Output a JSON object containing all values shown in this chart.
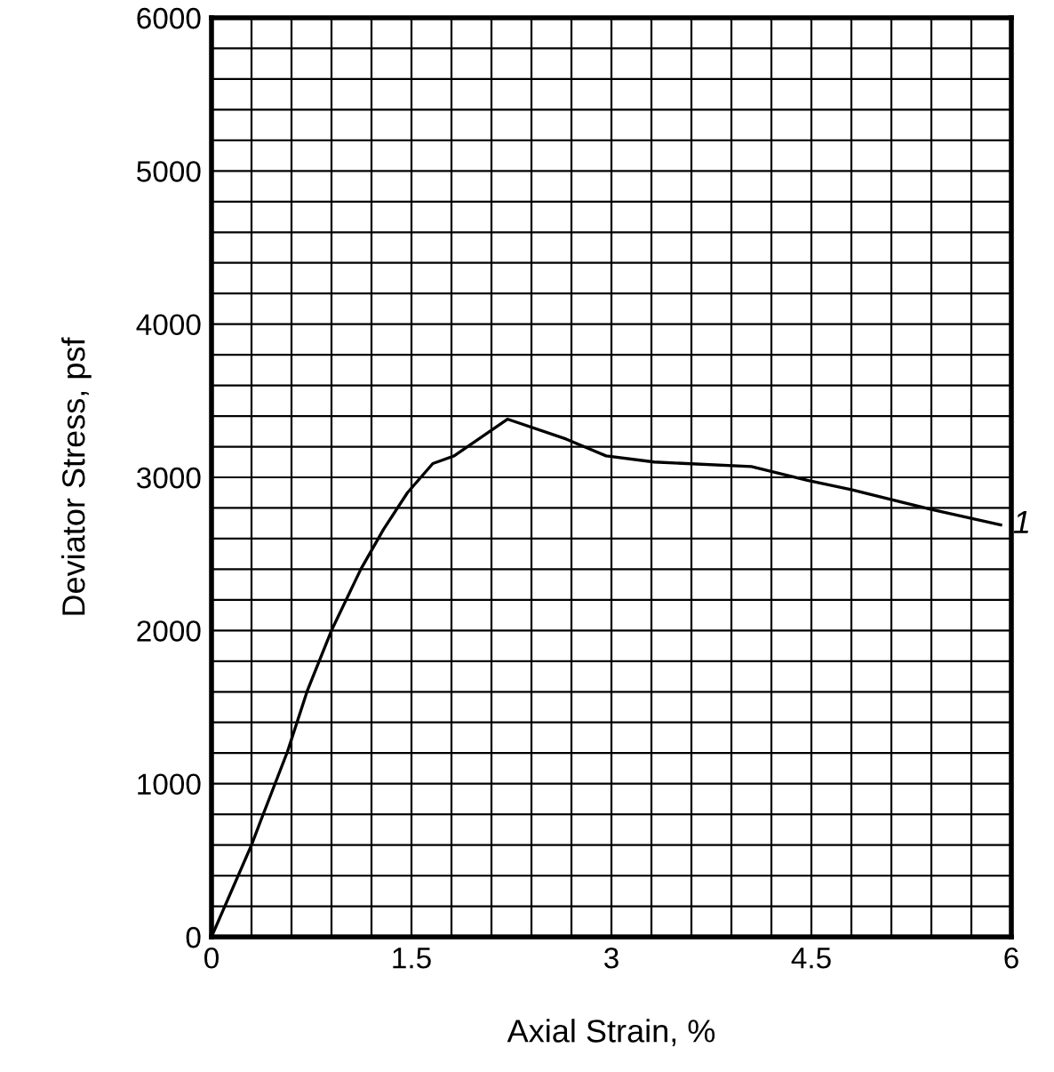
{
  "chart_data": {
    "type": "line",
    "xlabel": "Axial Strain, %",
    "ylabel": "Deviator Stress, psf",
    "x": [
      0,
      0.3,
      0.37,
      0.57,
      0.72,
      0.9,
      1.12,
      1.29,
      1.47,
      1.66,
      1.82,
      2.22,
      2.66,
      2.96,
      3.32,
      4.05,
      4.47,
      4.8,
      5.4,
      5.92
    ],
    "series": [
      {
        "name": "1",
        "color": "#000000",
        "values": [
          0,
          600,
          760,
          1210,
          1610,
          2000,
          2400,
          2660,
          2900,
          3090,
          3140,
          3380,
          3250,
          3140,
          3100,
          3070,
          2980,
          2920,
          2790,
          2690
        ]
      }
    ],
    "xlim": [
      0,
      6
    ],
    "ylim": [
      0,
      6000
    ],
    "xticks": [
      0,
      {
        "value": 0.3,
        "label": null
      },
      {
        "value": 0.6,
        "label": null
      },
      {
        "value": 0.9,
        "label": null
      },
      {
        "value": 1.2,
        "label": null
      },
      1.5,
      {
        "value": 1.8,
        "label": null
      },
      {
        "value": 2.1,
        "label": null
      },
      {
        "value": 2.4,
        "label": null
      },
      {
        "value": 2.7,
        "label": null
      },
      3,
      {
        "value": 3.3,
        "label": null
      },
      {
        "value": 3.6,
        "label": null
      },
      {
        "value": 3.9,
        "label": null
      },
      {
        "value": 4.2,
        "label": null
      },
      4.5,
      {
        "value": 4.8,
        "label": null
      },
      {
        "value": 5.1,
        "label": null
      },
      {
        "value": 5.4,
        "label": null
      },
      {
        "value": 5.7,
        "label": null
      },
      6
    ],
    "yticks": [
      0,
      {
        "value": 200,
        "label": null
      },
      {
        "value": 400,
        "label": null
      },
      {
        "value": 600,
        "label": null
      },
      {
        "value": 800,
        "label": null
      },
      1000,
      {
        "value": 1200,
        "label": null
      },
      {
        "value": 1400,
        "label": null
      },
      {
        "value": 1600,
        "label": null
      },
      {
        "value": 1800,
        "label": null
      },
      2000,
      {
        "value": 2200,
        "label": null
      },
      {
        "value": 2400,
        "label": null
      },
      {
        "value": 2600,
        "label": null
      },
      {
        "value": 2800,
        "label": null
      },
      3000,
      {
        "value": 3200,
        "label": null
      },
      {
        "value": 3400,
        "label": null
      },
      {
        "value": 3600,
        "label": null
      },
      {
        "value": 3800,
        "label": null
      },
      4000,
      {
        "value": 4200,
        "label": null
      },
      {
        "value": 4400,
        "label": null
      },
      {
        "value": 4600,
        "label": null
      },
      {
        "value": 4800,
        "label": null
      },
      5000,
      {
        "value": 5200,
        "label": null
      },
      {
        "value": 5400,
        "label": null
      },
      {
        "value": 5600,
        "label": null
      },
      {
        "value": 5800,
        "label": null
      },
      6000
    ],
    "grid": true,
    "legend": false,
    "marker": "none",
    "line_style": "solid"
  }
}
